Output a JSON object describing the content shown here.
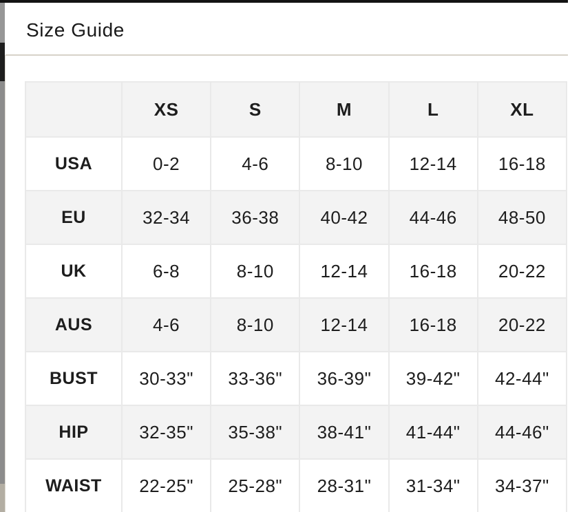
{
  "modal": {
    "title": "Size Guide"
  },
  "table": {
    "columns": [
      "",
      "XS",
      "S",
      "M",
      "L",
      "XL"
    ],
    "rows": [
      {
        "label": "USA",
        "values": [
          "0-2",
          "4-6",
          "8-10",
          "12-14",
          "16-18"
        ]
      },
      {
        "label": "EU",
        "values": [
          "32-34",
          "36-38",
          "40-42",
          "44-46",
          "48-50"
        ]
      },
      {
        "label": "UK",
        "values": [
          "6-8",
          "8-10",
          "12-14",
          "16-18",
          "20-22"
        ]
      },
      {
        "label": "AUS",
        "values": [
          "4-6",
          "8-10",
          "12-14",
          "16-18",
          "20-22"
        ]
      },
      {
        "label": "BUST",
        "values": [
          "30-33\"",
          "33-36\"",
          "36-39\"",
          "39-42\"",
          "42-44\""
        ]
      },
      {
        "label": "HIP",
        "values": [
          "32-35\"",
          "35-38\"",
          "38-41\"",
          "41-44\"",
          "44-46\""
        ]
      },
      {
        "label": "WAIST",
        "values": [
          "22-25\"",
          "25-28\"",
          "28-31\"",
          "31-34\"",
          "34-37\""
        ]
      }
    ]
  },
  "colors": {
    "top_bar": "#131313",
    "divider": "#d7d2c8",
    "stripe_bg": "#f3f3f3",
    "cell_border": "#e9e9e9",
    "scroll_thumb": "#1e1e1e",
    "scroll_track": "#8c8c8c"
  }
}
